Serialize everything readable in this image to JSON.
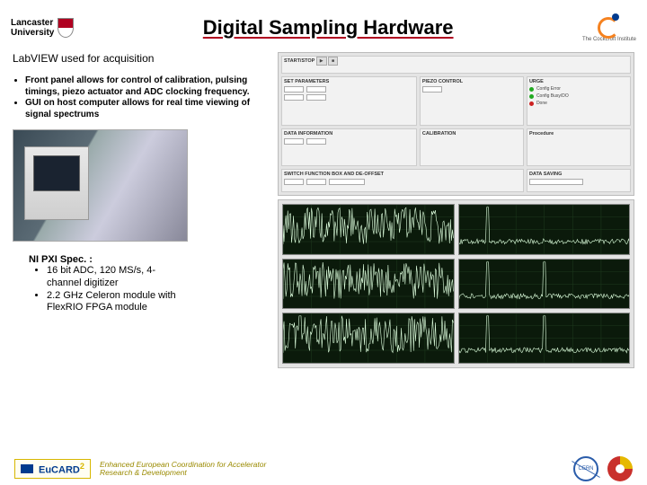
{
  "header": {
    "uni_line1": "Lancaster",
    "uni_line2": "University",
    "title": "Digital Sampling Hardware",
    "ci_label": "The Cockcroft Institute"
  },
  "subtitle": "LabVIEW used for acquisition",
  "bullets": [
    "Front panel allows for control of calibration, pulsing timings, piezo actuator and ADC clocking frequency.",
    "GUI on host computer allows for real time viewing of signal spectrums"
  ],
  "spec": {
    "heading": "NI PXI Spec. :",
    "items": [
      "16 bit ADC, 120 MS/s, 4-channel digitizer",
      "2.2 GHz Celeron module with FlexRIO FPGA module"
    ]
  },
  "panel": {
    "boxes": {
      "startstop": "START/STOP",
      "setparams": "SET PARAMETERS",
      "piezo": "PIEZO CONTROL",
      "urge": "URGE",
      "datainfo": "DATA INFORMATION",
      "calibration": "CALIBRATION",
      "procedure": "Procedure",
      "switch": "SWITCH FUNCTION BOX AND DE-OFFSET",
      "datasaving": "DATA SAVING"
    },
    "legend": [
      "Config Error",
      "Config Busy/DO",
      "Done"
    ]
  },
  "plots": {
    "grid_color": "#1e3a1e",
    "trace_color": "#d8f8d8",
    "bg": "#0b1a0b",
    "series": [
      {
        "type": "noise",
        "peaks": []
      },
      {
        "type": "line",
        "peaks": [
          30
        ]
      },
      {
        "type": "noise",
        "peaks": []
      },
      {
        "type": "line",
        "peaks": [
          30,
          90
        ]
      },
      {
        "type": "line-noise",
        "peaks": [
          18
        ]
      },
      {
        "type": "line",
        "peaks": [
          30,
          90
        ]
      }
    ]
  },
  "footer": {
    "eucard": "EuCARD",
    "eucard_sup": "2",
    "sub1": "Enhanced European Coordination for Accelerator",
    "sub2": "Research & Development",
    "cern": "CERN"
  }
}
